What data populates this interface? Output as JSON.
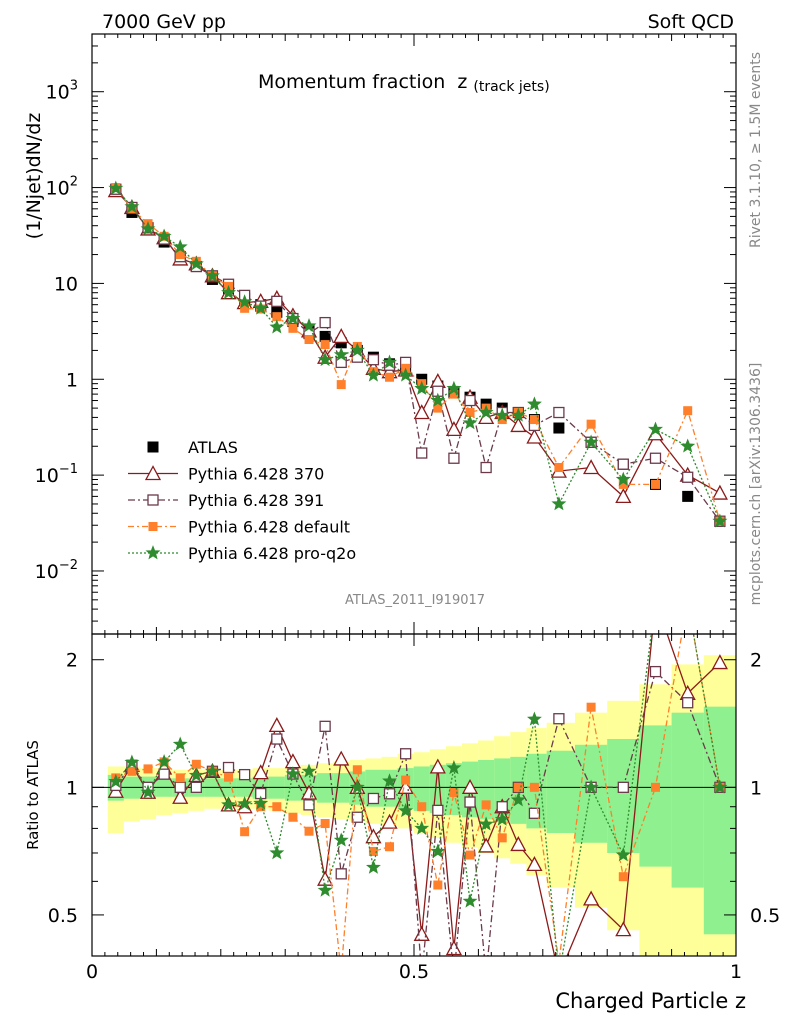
{
  "header": {
    "left": "7000 GeV pp",
    "right": "Soft QCD"
  },
  "side": {
    "rivet": "Rivet 3.1.10, ≥ 1.5M events",
    "source": "mcplots.cern.ch [arXiv:1306.3436]"
  },
  "chart_data": {
    "type": "scatter",
    "title": "Momentum fraction",
    "title_sub": "z",
    "title_sub2": "(track jets)",
    "ylabel": "(1/Njet)dN/dz",
    "xlabel": "Charged Particle z",
    "ratio_ylabel": "Ratio to ATLAS",
    "watermark": "ATLAS_2011_I919017",
    "log_y": true,
    "ylim": [
      0.0022,
      4000
    ],
    "xlim": [
      0,
      1
    ],
    "ratio_ylim": [
      0.4,
      2.3
    ],
    "x_ticks": [
      "0",
      "0.5",
      "1"
    ],
    "y_ticks": [
      "10",
      "1"
    ],
    "y_ticks_pow": [
      {
        "base": "10",
        "exp": "3"
      },
      {
        "base": "10",
        "exp": "2"
      },
      {
        "base": "10",
        "exp": "−1"
      },
      {
        "base": "10",
        "exp": "−2"
      }
    ],
    "ratio_ticks": [
      "0.5",
      "1",
      "2"
    ],
    "x": [
      0.037,
      0.062,
      0.087,
      0.112,
      0.137,
      0.162,
      0.187,
      0.212,
      0.237,
      0.262,
      0.287,
      0.312,
      0.337,
      0.362,
      0.387,
      0.412,
      0.437,
      0.462,
      0.487,
      0.512,
      0.537,
      0.562,
      0.587,
      0.612,
      0.637,
      0.662,
      0.687,
      0.725,
      0.775,
      0.825,
      0.875,
      0.925,
      0.975
    ],
    "series": [
      {
        "name": "ATLAS",
        "color": "#000000",
        "values": [
          95,
          55,
          38,
          27,
          19,
          15,
          11,
          8.8,
          7.0,
          6.0,
          5.0,
          4.0,
          3.3,
          2.8,
          2.4,
          2.0,
          1.7,
          1.45,
          1.25,
          1.0,
          0.85,
          0.72,
          0.65,
          0.55,
          0.5,
          0.45,
          0.38,
          0.31,
          0.22,
          0.13,
          0.08,
          0.06,
          0.033
        ]
      },
      {
        "name": "Pythia 6.428 370",
        "color": "#8b1a1a",
        "values": [
          93,
          62,
          37,
          30,
          18,
          16,
          12,
          8.0,
          6.3,
          6.5,
          7.0,
          4.6,
          3.2,
          1.7,
          2.8,
          2.0,
          1.3,
          1.2,
          1.25,
          0.45,
          0.95,
          0.3,
          0.65,
          0.4,
          0.45,
          0.33,
          0.25,
          0.11,
          0.12,
          0.06,
          0.27,
          0.1,
          0.065
        ]
      },
      {
        "name": "Pythia 6.428 391",
        "color": "#6b3a4a",
        "values": [
          96,
          62,
          38,
          29,
          19,
          15,
          12,
          9.8,
          7.5,
          5.8,
          6.5,
          4.3,
          3.0,
          3.9,
          1.5,
          1.7,
          1.6,
          1.4,
          1.5,
          0.17,
          0.75,
          0.15,
          0.6,
          0.12,
          0.45,
          0.45,
          0.33,
          0.45,
          0.22,
          0.13,
          0.15,
          0.095,
          0.033
        ]
      },
      {
        "name": "Pythia 6.428 default",
        "color": "#ff7f2a",
        "values": [
          100,
          60,
          42,
          31,
          20,
          17,
          12,
          9.3,
          5.5,
          5.4,
          4.5,
          3.4,
          2.6,
          2.3,
          0.88,
          2.2,
          1.2,
          1.05,
          1.3,
          0.9,
          0.5,
          0.7,
          0.45,
          0.5,
          0.38,
          0.45,
          0.38,
          0.12,
          0.34,
          0.08,
          0.08,
          0.47,
          0.033
        ]
      },
      {
        "name": "Pythia 6.428 pro-q2o",
        "color": "#2e8b2e",
        "values": [
          98,
          63,
          37,
          31,
          24,
          16,
          12,
          8.0,
          6.4,
          5.5,
          3.5,
          4.3,
          3.6,
          1.6,
          1.8,
          2.0,
          1.1,
          1.5,
          1.1,
          0.8,
          0.6,
          0.8,
          0.35,
          0.45,
          0.42,
          0.42,
          0.55,
          0.05,
          0.22,
          0.09,
          0.3,
          0.2,
          0.033
        ]
      }
    ],
    "ratio_band_inner": [
      [
        0.93,
        1.07
      ],
      [
        0.94,
        1.06
      ],
      [
        0.94,
        1.06
      ],
      [
        0.95,
        1.05
      ],
      [
        0.95,
        1.05
      ],
      [
        0.95,
        1.05
      ],
      [
        0.95,
        1.05
      ],
      [
        0.95,
        1.05
      ],
      [
        0.95,
        1.05
      ],
      [
        0.94,
        1.06
      ],
      [
        0.94,
        1.06
      ],
      [
        0.93,
        1.07
      ],
      [
        0.93,
        1.07
      ],
      [
        0.92,
        1.08
      ],
      [
        0.92,
        1.08
      ],
      [
        0.91,
        1.09
      ],
      [
        0.9,
        1.1
      ],
      [
        0.9,
        1.1
      ],
      [
        0.89,
        1.11
      ],
      [
        0.88,
        1.12
      ],
      [
        0.87,
        1.13
      ],
      [
        0.86,
        1.14
      ],
      [
        0.85,
        1.15
      ],
      [
        0.84,
        1.16
      ],
      [
        0.83,
        1.17
      ],
      [
        0.82,
        1.18
      ],
      [
        0.8,
        1.2
      ],
      [
        0.78,
        1.22
      ],
      [
        0.74,
        1.26
      ],
      [
        0.7,
        1.3
      ],
      [
        0.65,
        1.4
      ],
      [
        0.58,
        1.5
      ],
      [
        0.45,
        1.55
      ]
    ],
    "ratio_band_outer": [
      [
        0.78,
        1.12
      ],
      [
        0.83,
        1.12
      ],
      [
        0.84,
        1.11
      ],
      [
        0.86,
        1.11
      ],
      [
        0.87,
        1.1
      ],
      [
        0.88,
        1.1
      ],
      [
        0.89,
        1.1
      ],
      [
        0.89,
        1.1
      ],
      [
        0.89,
        1.1
      ],
      [
        0.89,
        1.11
      ],
      [
        0.88,
        1.11
      ],
      [
        0.87,
        1.12
      ],
      [
        0.86,
        1.13
      ],
      [
        0.85,
        1.14
      ],
      [
        0.84,
        1.15
      ],
      [
        0.83,
        1.16
      ],
      [
        0.82,
        1.17
      ],
      [
        0.81,
        1.18
      ],
      [
        0.8,
        1.2
      ],
      [
        0.78,
        1.21
      ],
      [
        0.76,
        1.23
      ],
      [
        0.74,
        1.25
      ],
      [
        0.72,
        1.27
      ],
      [
        0.7,
        1.29
      ],
      [
        0.68,
        1.32
      ],
      [
        0.66,
        1.35
      ],
      [
        0.62,
        1.38
      ],
      [
        0.58,
        1.42
      ],
      [
        0.52,
        1.5
      ],
      [
        0.46,
        1.6
      ],
      [
        0.4,
        1.75
      ],
      [
        0.38,
        1.95
      ],
      [
        0.38,
        2.05
      ]
    ],
    "legend_position": "bottom-left"
  },
  "colors": {
    "band_inner": "#8ef08e",
    "band_outer": "#ffff99"
  }
}
